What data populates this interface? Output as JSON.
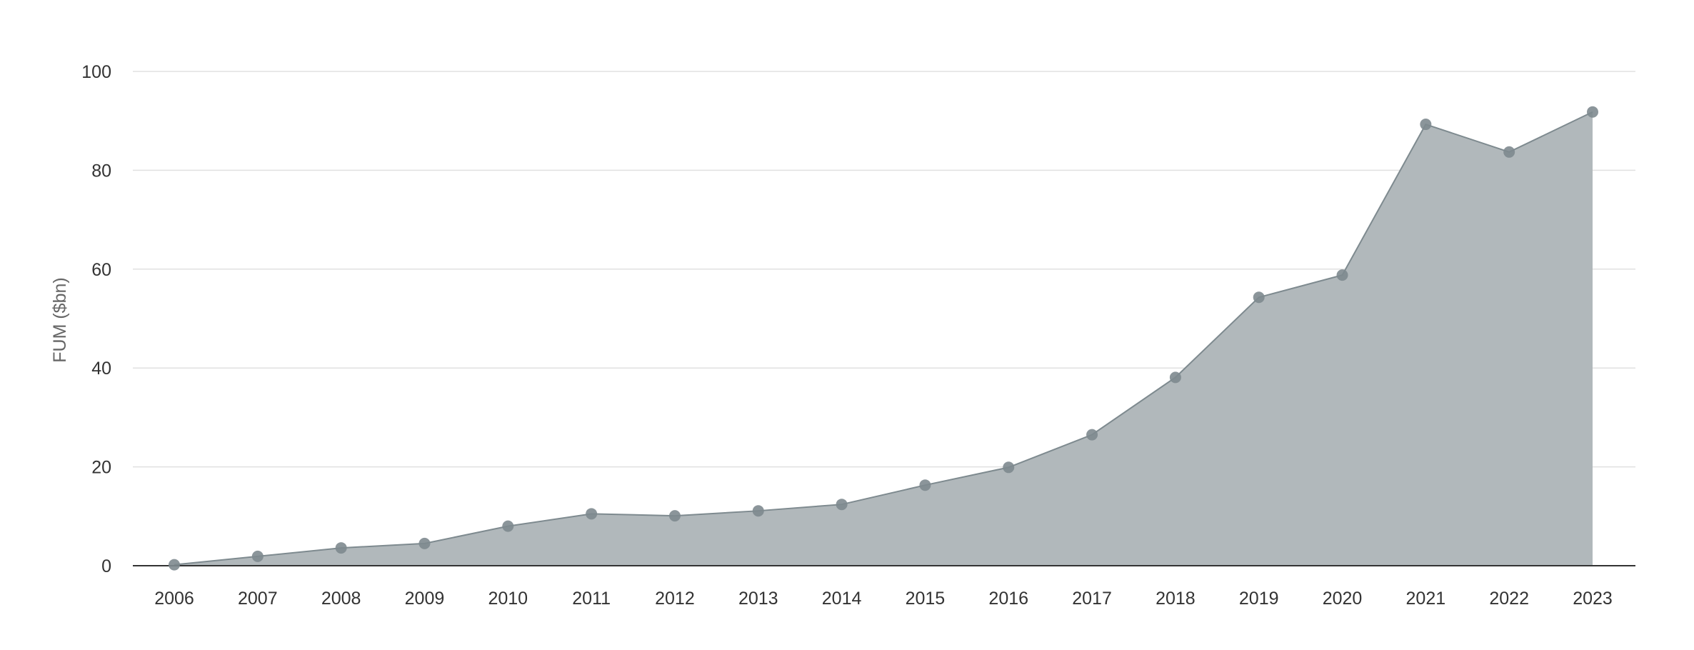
{
  "chart_data": {
    "type": "area",
    "title": "",
    "xlabel": "",
    "ylabel": "FUM ($bn)",
    "x": [
      "2006",
      "2007",
      "2008",
      "2009",
      "2010",
      "2011",
      "2012",
      "2013",
      "2014",
      "2015",
      "2016",
      "2017",
      "2018",
      "2019",
      "2020",
      "2021",
      "2022",
      "2023"
    ],
    "series": [
      {
        "values": [
          0.2,
          1.9,
          3.6,
          4.5,
          8.0,
          10.5,
          10.1,
          11.1,
          12.4,
          16.3,
          19.9,
          26.5,
          38.1,
          54.3,
          58.8,
          89.3,
          83.7,
          91.8
        ]
      }
    ],
    "ylim": [
      0,
      100
    ],
    "yticks": [
      "0",
      "20",
      "40",
      "60",
      "80",
      "100"
    ],
    "grid": true,
    "legend": "none",
    "colors": {
      "area_fill": "#b1b8bb",
      "line": "#7e8a8f",
      "marker": "#7e8a8f",
      "grid": "#e0e0e0",
      "axis": "#333333"
    }
  }
}
